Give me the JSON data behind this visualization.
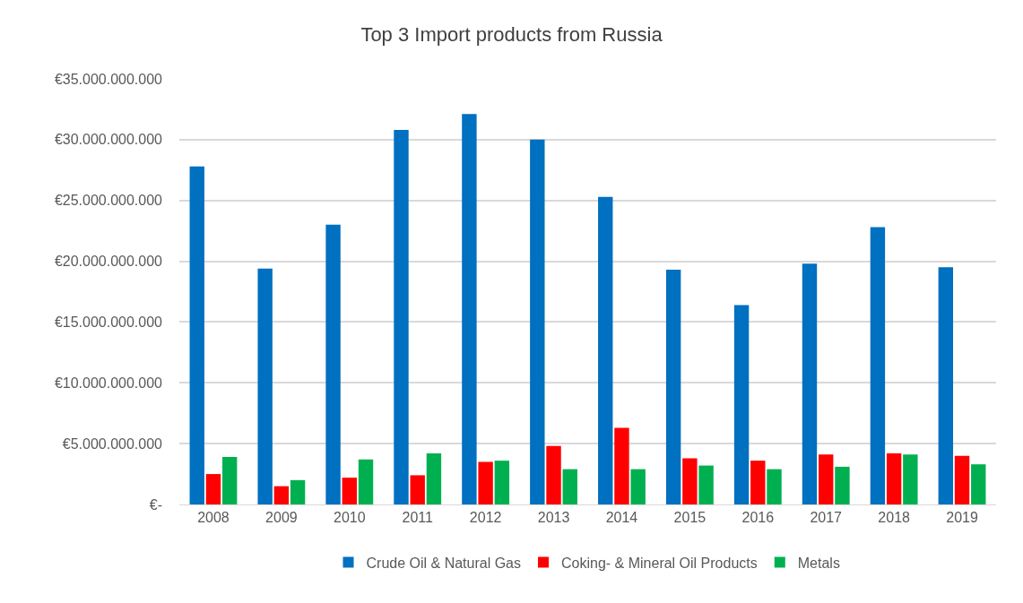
{
  "chart_data": {
    "type": "bar",
    "title": "Top 3 Import products from Russia",
    "categories": [
      "2008",
      "2009",
      "2010",
      "2011",
      "2012",
      "2013",
      "2014",
      "2015",
      "2016",
      "2017",
      "2018",
      "2019"
    ],
    "series": [
      {
        "name": "Crude Oil & Natural Gas",
        "color": "#0070c0",
        "values": [
          27800000000,
          19400000000,
          23000000000,
          30800000000,
          32100000000,
          30000000000,
          25300000000,
          19300000000,
          16400000000,
          19800000000,
          22800000000,
          19500000000
        ]
      },
      {
        "name": "Coking- & Mineral Oil Products",
        "color": "#ff0000",
        "values": [
          2500000000,
          1500000000,
          2200000000,
          2400000000,
          3500000000,
          4800000000,
          6300000000,
          3800000000,
          3600000000,
          4100000000,
          4200000000,
          4000000000
        ]
      },
      {
        "name": "Metals",
        "color": "#00b050",
        "values": [
          3900000000,
          2000000000,
          3700000000,
          4200000000,
          3600000000,
          2900000000,
          2900000000,
          3200000000,
          2900000000,
          3100000000,
          4100000000,
          3300000000
        ]
      }
    ],
    "ylim": [
      0,
      35000000000
    ],
    "yticks": [
      {
        "value": 0,
        "label": "€-"
      },
      {
        "value": 5000000000,
        "label": "€5.000.000.000"
      },
      {
        "value": 10000000000,
        "label": "€10.000.000.000"
      },
      {
        "value": 15000000000,
        "label": "€15.000.000.000"
      },
      {
        "value": 20000000000,
        "label": "€20.000.000.000"
      },
      {
        "value": 25000000000,
        "label": "€25.000.000.000"
      },
      {
        "value": 30000000000,
        "label": "€30.000.000.000"
      },
      {
        "value": 35000000000,
        "label": "€35.000.000.000"
      }
    ],
    "grid": "y",
    "legend": "bottom"
  }
}
